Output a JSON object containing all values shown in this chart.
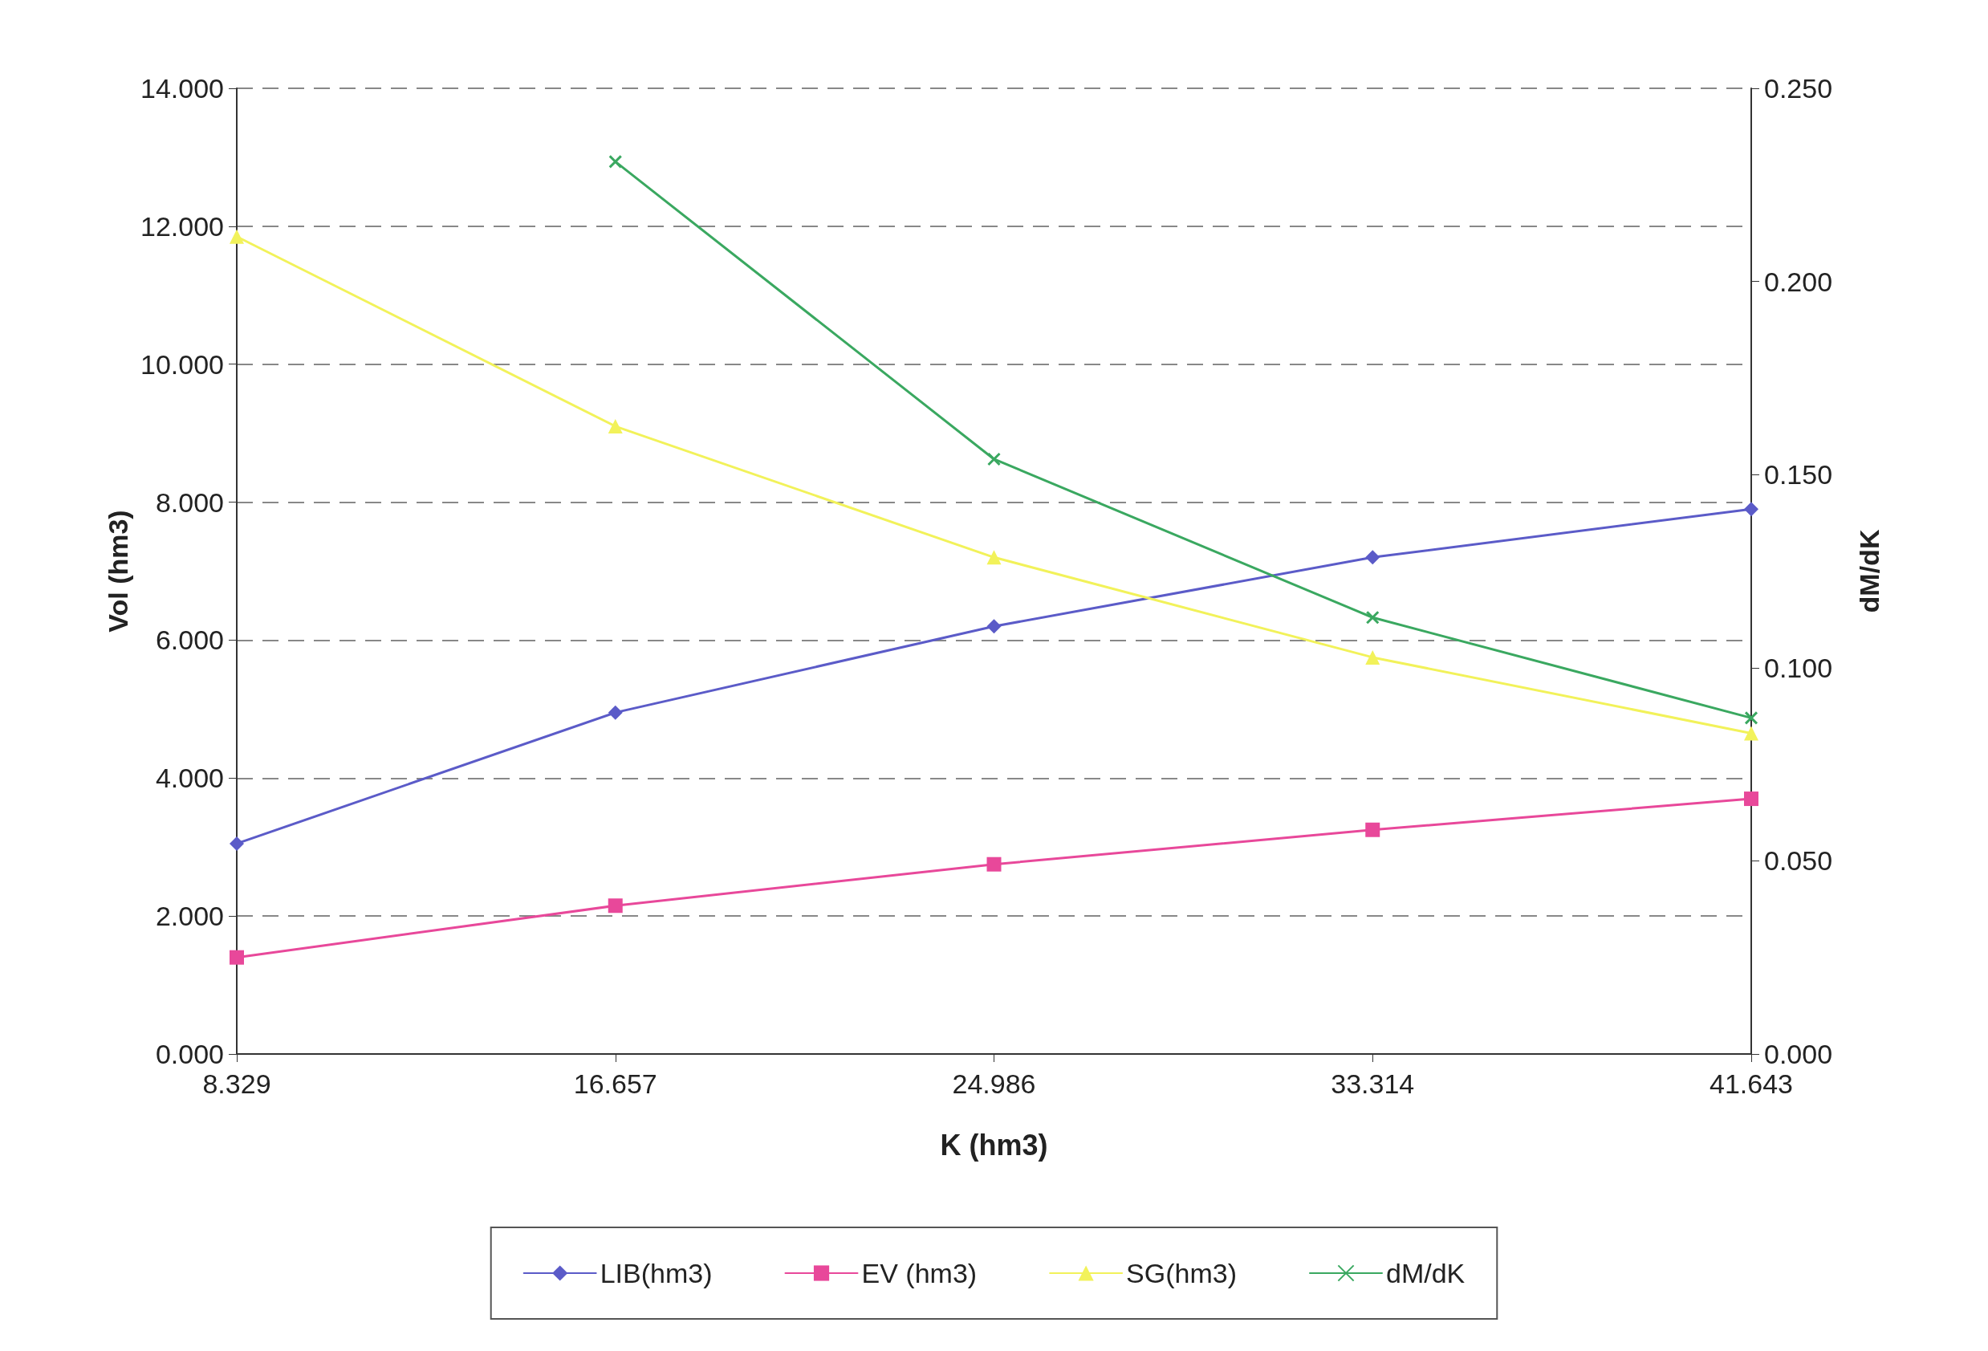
{
  "chart_data": {
    "type": "line",
    "xlabel": "K (hm3)",
    "ylabel": "Vol (hm3)",
    "y2label": "dM/dK",
    "categories": [
      "8.329",
      "16.657",
      "24.986",
      "33.314",
      "41.643"
    ],
    "series": [
      {
        "name": "LIB(hm3)",
        "color": "#5b5bc8",
        "marker": "diamond",
        "values": [
          3.05,
          4.95,
          6.2,
          7.2,
          7.9
        ]
      },
      {
        "name": "EV (hm3)",
        "color": "#e8489a",
        "marker": "square",
        "values": [
          1.4,
          2.15,
          2.75,
          3.25,
          3.7
        ]
      },
      {
        "name": "SG(hm3)",
        "color": "#f2f25a",
        "marker": "triangle",
        "values": [
          11.85,
          9.1,
          7.2,
          5.75,
          4.65
        ]
      },
      {
        "name": "dM/dK",
        "color": "#3aa860",
        "marker": "cross",
        "axis": "y2",
        "values": [
          null,
          0.231,
          0.154,
          0.113,
          0.087
        ]
      }
    ],
    "ylim": [
      0,
      14
    ],
    "yticks": [
      {
        "value": 0,
        "label": "0.000"
      },
      {
        "value": 2,
        "label": "2.000"
      },
      {
        "value": 4,
        "label": "4.000"
      },
      {
        "value": 6,
        "label": "6.000"
      },
      {
        "value": 8,
        "label": "8.000"
      },
      {
        "value": 10,
        "label": "10.000"
      },
      {
        "value": 12,
        "label": "12.000"
      },
      {
        "value": 14,
        "label": "14.000"
      }
    ],
    "y2lim": [
      0,
      0.25
    ],
    "y2ticks": [
      {
        "value": 0,
        "label": "0.000"
      },
      {
        "value": 0.05,
        "label": "0.050"
      },
      {
        "value": 0.1,
        "label": "0.100"
      },
      {
        "value": 0.15,
        "label": "0.150"
      },
      {
        "value": 0.2,
        "label": "0.200"
      },
      {
        "value": 0.25,
        "label": "0.250"
      }
    ],
    "grid": "y",
    "legend": "bottom",
    "line_style": "solid"
  }
}
